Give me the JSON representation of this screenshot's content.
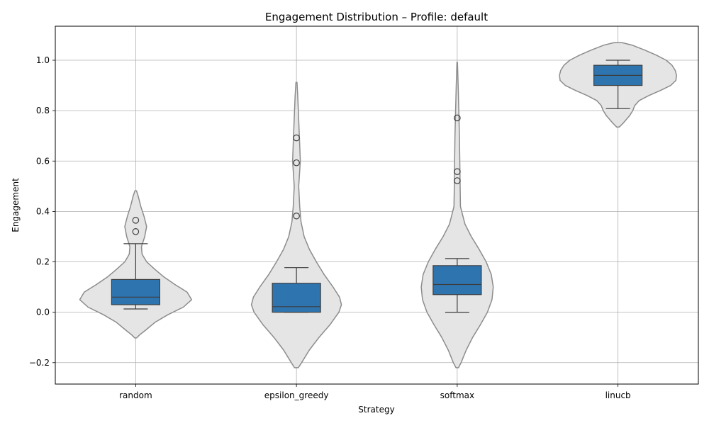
{
  "chart_data": {
    "type": "violin",
    "title": "Engagement Distribution – Profile: default",
    "xlabel": "Strategy",
    "ylabel": "Engagement",
    "categories": [
      "random",
      "epsilon_greedy",
      "softmax",
      "linucb"
    ],
    "ylim": [
      -0.285,
      1.135
    ],
    "yticks": [
      -0.2,
      0.0,
      0.2,
      0.4,
      0.6,
      0.8,
      1.0
    ],
    "ytick_labels": [
      "−0.2",
      "0.0",
      "0.2",
      "0.4",
      "0.6",
      "0.8",
      "1.0"
    ],
    "grid": true,
    "violin_color": "#e5e5e5",
    "violin_edge_color": "#8c8c8c",
    "box_color": "#2e75b0",
    "distributions": [
      {
        "category": "random",
        "box": {
          "whisker_low": 0.013,
          "q1": 0.03,
          "median": 0.06,
          "q3": 0.13,
          "whisker_high": 0.272
        },
        "outliers": [
          0.32,
          0.365
        ],
        "violin": {
          "y": [
            -0.102,
            -0.09,
            -0.07,
            -0.04,
            -0.01,
            0.02,
            0.05,
            0.08,
            0.11,
            0.14,
            0.17,
            0.2,
            0.23,
            0.26,
            0.3,
            0.34,
            0.38,
            0.42,
            0.46,
            0.482
          ],
          "half_width": [
            0.015,
            0.06,
            0.16,
            0.3,
            0.5,
            0.74,
            0.87,
            0.8,
            0.61,
            0.44,
            0.3,
            0.17,
            0.1,
            0.09,
            0.14,
            0.17,
            0.13,
            0.08,
            0.04,
            0.012
          ]
        }
      },
      {
        "category": "epsilon_greedy",
        "box": {
          "whisker_low": 0.0,
          "q1": 0.0,
          "median": 0.022,
          "q3": 0.115,
          "whisker_high": 0.177
        },
        "outliers": [
          0.382,
          0.593,
          0.692
        ],
        "violin": {
          "y": [
            -0.22,
            -0.2,
            -0.15,
            -0.1,
            -0.05,
            0.0,
            0.03,
            0.06,
            0.1,
            0.15,
            0.2,
            0.25,
            0.3,
            0.36,
            0.42,
            0.5,
            0.6,
            0.7,
            0.8,
            0.86,
            0.912
          ],
          "half_width": [
            0.03,
            0.08,
            0.2,
            0.35,
            0.52,
            0.66,
            0.7,
            0.67,
            0.57,
            0.43,
            0.31,
            0.2,
            0.12,
            0.07,
            0.05,
            0.035,
            0.06,
            0.045,
            0.03,
            0.02,
            0.008
          ]
        }
      },
      {
        "category": "softmax",
        "box": {
          "whisker_low": 0.0,
          "q1": 0.07,
          "median": 0.11,
          "q3": 0.185,
          "whisker_high": 0.213
        },
        "outliers": [
          0.522,
          0.558,
          0.771
        ],
        "violin": {
          "y": [
            -0.22,
            -0.2,
            -0.15,
            -0.1,
            -0.05,
            0.0,
            0.05,
            0.1,
            0.15,
            0.2,
            0.25,
            0.3,
            0.35,
            0.42,
            0.5,
            0.6,
            0.7,
            0.8,
            0.9,
            0.992
          ],
          "half_width": [
            0.02,
            0.06,
            0.14,
            0.24,
            0.36,
            0.47,
            0.54,
            0.56,
            0.53,
            0.45,
            0.34,
            0.22,
            0.12,
            0.05,
            0.045,
            0.04,
            0.035,
            0.025,
            0.015,
            0.004
          ]
        }
      },
      {
        "category": "linucb",
        "box": {
          "whisker_low": 0.808,
          "q1": 0.9,
          "median": 0.94,
          "q3": 0.98,
          "whisker_high": 1.0
        },
        "outliers": [],
        "violin": {
          "y": [
            0.735,
            0.75,
            0.78,
            0.8,
            0.82,
            0.84,
            0.86,
            0.88,
            0.9,
            0.92,
            0.94,
            0.96,
            0.98,
            1.0,
            1.02,
            1.04,
            1.06,
            1.07
          ],
          "half_width": [
            0.02,
            0.08,
            0.18,
            0.23,
            0.26,
            0.33,
            0.48,
            0.66,
            0.82,
            0.9,
            0.91,
            0.89,
            0.84,
            0.75,
            0.6,
            0.42,
            0.22,
            0.06
          ]
        }
      }
    ]
  }
}
